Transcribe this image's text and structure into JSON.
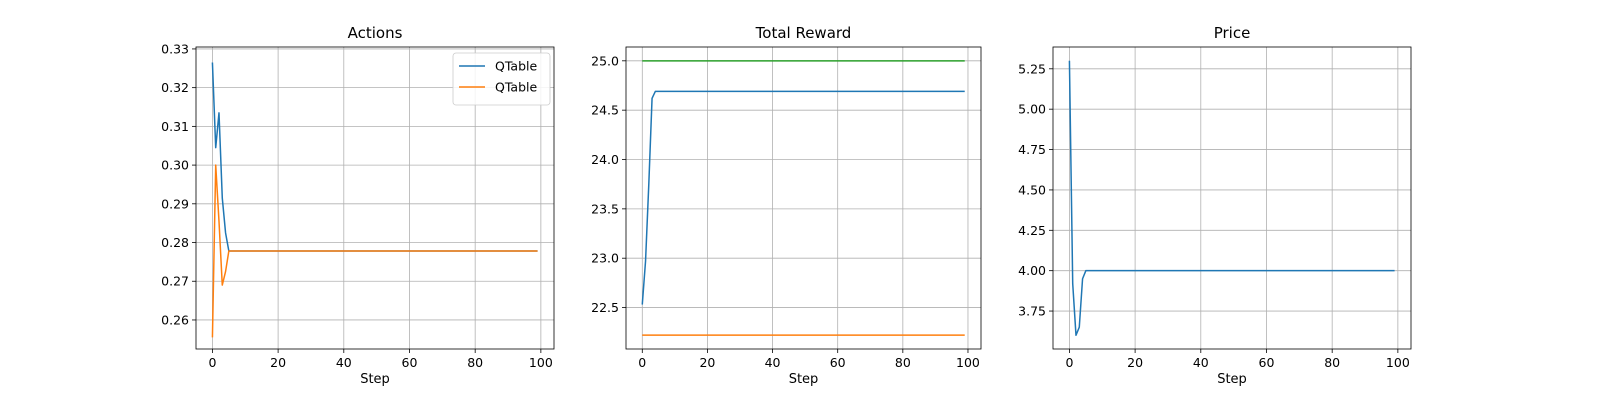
{
  "chart_data": [
    {
      "type": "line",
      "title": "Actions",
      "xlabel": "Step",
      "ylabel": "",
      "xlim": [
        -5,
        104
      ],
      "ylim": [
        0.2525,
        0.3305
      ],
      "xticks": [
        0,
        20,
        40,
        60,
        80,
        100
      ],
      "yticks": [
        0.26,
        0.27,
        0.28,
        0.29,
        0.3,
        0.31,
        0.32,
        0.33
      ],
      "ytick_labels": [
        "0.26",
        "0.27",
        "0.28",
        "0.29",
        "0.30",
        "0.31",
        "0.32",
        "0.33"
      ],
      "grid": true,
      "legend": "top-right",
      "series": [
        {
          "name": "QTable",
          "color": "#1f77b4",
          "points": [
            [
              0,
              0.3265
            ],
            [
              1,
              0.3045
            ],
            [
              2,
              0.3135
            ],
            [
              3,
              0.2915
            ],
            [
              4,
              0.2825
            ],
            [
              5,
              0.2778
            ],
            [
              99,
              0.2778
            ]
          ]
        },
        {
          "name": "QTable",
          "color": "#ff7f0e",
          "points": [
            [
              0,
              0.2555
            ],
            [
              1,
              0.3
            ],
            [
              2,
              0.2855
            ],
            [
              3,
              0.269
            ],
            [
              4,
              0.2725
            ],
            [
              5,
              0.2778
            ],
            [
              99,
              0.2778
            ]
          ]
        }
      ]
    },
    {
      "type": "line",
      "title": "Total Reward",
      "xlabel": "Step",
      "ylabel": "",
      "xlim": [
        -5,
        104
      ],
      "ylim": [
        22.08,
        25.14
      ],
      "xticks": [
        0,
        20,
        40,
        60,
        80,
        100
      ],
      "yticks": [
        22.5,
        23.0,
        23.5,
        24.0,
        24.5,
        25.0
      ],
      "ytick_labels": [
        "22.5",
        "23.0",
        "23.5",
        "24.0",
        "24.5",
        "25.0"
      ],
      "grid": true,
      "legend": "",
      "series": [
        {
          "color": "#1f77b4",
          "points": [
            [
              0,
              22.53
            ],
            [
              1,
              22.97
            ],
            [
              2,
              23.75
            ],
            [
              3,
              24.62
            ],
            [
              4,
              24.69
            ],
            [
              99,
              24.69
            ]
          ]
        },
        {
          "color": "#2ca02c",
          "points": [
            [
              0,
              25.0
            ],
            [
              99,
              25.0
            ]
          ]
        },
        {
          "color": "#ff7f0e",
          "points": [
            [
              0,
              22.22
            ],
            [
              99,
              22.22
            ]
          ]
        }
      ]
    },
    {
      "type": "line",
      "title": "Price",
      "xlabel": "Step",
      "ylabel": "",
      "xlim": [
        -5,
        104
      ],
      "ylim": [
        3.515,
        5.385
      ],
      "xticks": [
        0,
        20,
        40,
        60,
        80,
        100
      ],
      "yticks": [
        3.75,
        4.0,
        4.25,
        4.5,
        4.75,
        5.0,
        5.25
      ],
      "ytick_labels": [
        "3.75",
        "4.00",
        "4.25",
        "4.50",
        "4.75",
        "5.00",
        "5.25"
      ],
      "grid": true,
      "legend": "",
      "series": [
        {
          "color": "#1f77b4",
          "points": [
            [
              0,
              5.3
            ],
            [
              1,
              3.92
            ],
            [
              2,
              3.6
            ],
            [
              3,
              3.65
            ],
            [
              4,
              3.95
            ],
            [
              5,
              4.0
            ],
            [
              99,
              4.0
            ]
          ]
        }
      ]
    }
  ]
}
